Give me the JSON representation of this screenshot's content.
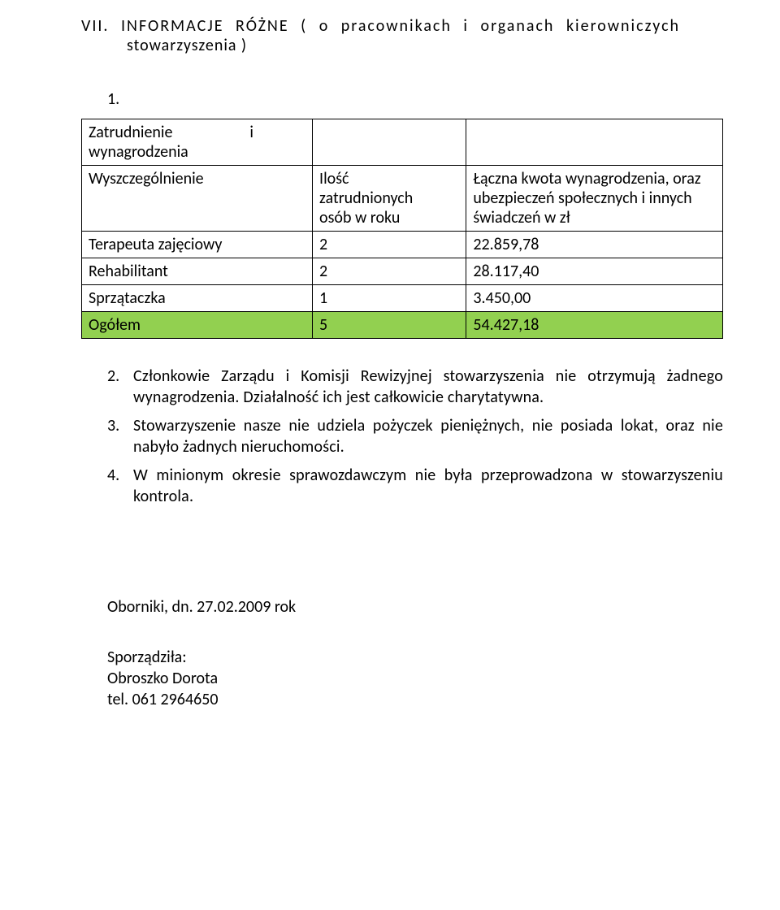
{
  "heading": {
    "line1": "VII.  INFORMACJE  RÓŻNE  (  o  pracownikach  i  organach  kierowniczych",
    "line2": "stowarzyszenia )"
  },
  "item1_number": "1.",
  "table": {
    "header": {
      "name_l1": "Zatrudnienie",
      "name_l2": "wynagrodzenia",
      "name_conj": "i",
      "spec_label": "Wyszczególnienie",
      "qty_l1": "Ilość",
      "qty_l2": "zatrudnionych",
      "qty_l3": "osób w roku",
      "amt_l1": "Łączna kwota wynagrodzenia, oraz",
      "amt_l2": "ubezpieczeń społecznych i innych",
      "amt_l3": "świadczeń w zł"
    },
    "rows": [
      {
        "name": "Terapeuta zajęciowy",
        "qty": "2",
        "amount": "22.859,78",
        "amt_align": "amt-right",
        "highlight": false
      },
      {
        "name": "Rehabilitant",
        "qty": "2",
        "amount": "28.117,40",
        "amt_align": "amt-right",
        "highlight": false
      },
      {
        "name": "Sprzątaczka",
        "qty": "1",
        "amount": "3.450,00",
        "amt_align": "amt-center",
        "highlight": false
      },
      {
        "name": "Ogółem",
        "qty": "5",
        "amount": "54.427,18",
        "amt_align": "amt-center",
        "highlight": true
      }
    ],
    "highlight_color": "#92d050",
    "border_color": "#000000"
  },
  "paragraphs": [
    {
      "num": "2.",
      "text": "Członkowie Zarządu i Komisji Rewizyjnej stowarzyszenia nie otrzymują żadnego wynagrodzenia. Działalność ich jest całkowicie charytatywna."
    },
    {
      "num": "3.",
      "text": "Stowarzyszenie nasze nie udziela pożyczek pieniężnych, nie posiada lokat, oraz nie nabyło żadnych nieruchomości."
    },
    {
      "num": "4.",
      "text": "W minionym okresie sprawozdawczym nie była przeprowadzona w stowarzyszeniu kontrola."
    }
  ],
  "footer": {
    "place_date": "Oborniki, dn. 27.02.2009 rok",
    "prepared_label": "Sporządziła:",
    "prepared_name": "Obroszko Dorota",
    "phone": "tel. 061 2964650"
  }
}
